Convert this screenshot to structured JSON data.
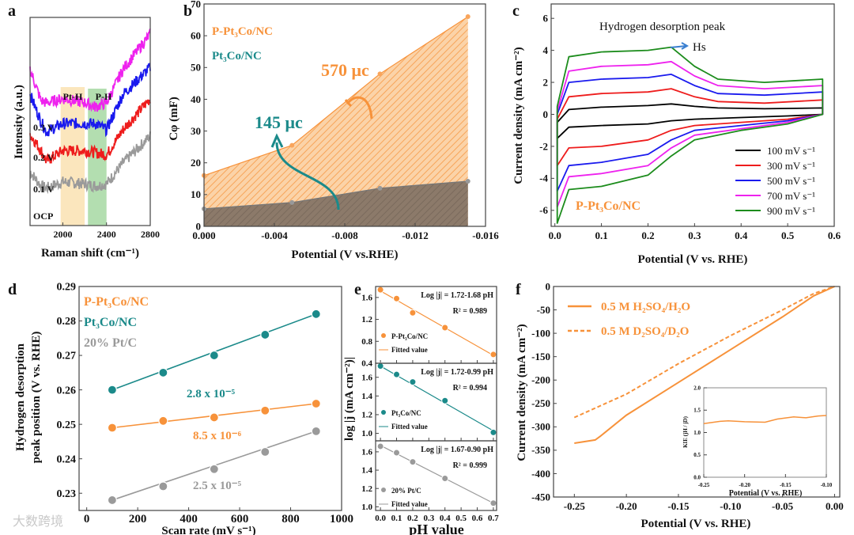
{
  "colors": {
    "orange": "#f7923a",
    "teal": "#1b8a8a",
    "grey": "#9a9a9a",
    "black": "#000000",
    "red": "#ee1c1c",
    "blue": "#1a1aee",
    "magenta": "#ee22ee",
    "green": "#1c8c1c",
    "pth_band": "#fbe6bd",
    "ph_band": "#a6d8a2"
  },
  "chart_data": [
    {
      "id": "a",
      "type": "line",
      "panel_label": "a",
      "xlabel": "Raman shift (cm⁻¹)",
      "ylabel": "Intensity (a.u.)",
      "xlim": [
        1700,
        2800
      ],
      "ylim": [
        0,
        10
      ],
      "xticks": [
        2000,
        2400,
        2800
      ],
      "xtick_labels": [
        "2000",
        "2400",
        "2800"
      ],
      "bands": [
        {
          "label": "Pt-H",
          "range": [
            1980,
            2200
          ]
        },
        {
          "label": "P-H",
          "range": [
            2230,
            2400
          ]
        }
      ],
      "x": [
        1700,
        1800,
        1850,
        2000,
        2200,
        2300,
        2400,
        2550,
        2800
      ],
      "series": [
        {
          "name": "OCP",
          "color": "grey",
          "values": [
            2.6,
            1.9,
            1.8,
            2.1,
            2.0,
            1.9,
            2.0,
            3.0,
            4.3
          ]
        },
        {
          "name": "0.1 V",
          "color": "red",
          "values": [
            4.4,
            3.6,
            3.1,
            3.6,
            3.6,
            3.5,
            3.4,
            4.6,
            6.1
          ]
        },
        {
          "name": "0.2 V",
          "color": "blue",
          "values": [
            6.3,
            5.0,
            4.5,
            4.9,
            4.9,
            4.9,
            4.6,
            6.3,
            7.6
          ]
        },
        {
          "name": "0.3 V",
          "color": "magenta",
          "values": [
            7.5,
            6.0,
            5.9,
            6.1,
            5.9,
            5.7,
            5.9,
            7.5,
            9.2
          ]
        }
      ]
    },
    {
      "id": "b",
      "type": "area",
      "panel_label": "b",
      "xlabel": "Potential (V vs.RHE)",
      "ylabel": "Cφ (mF)",
      "xlim": [
        0,
        -0.016
      ],
      "ylim": [
        0,
        70
      ],
      "xticks": [
        0,
        -0.004,
        -0.008,
        -0.012,
        -0.016
      ],
      "xtick_labels": [
        "0.000",
        "-0.004",
        "-0.008",
        "-0.012",
        "-0.016"
      ],
      "yticks": [
        0,
        10,
        20,
        30,
        40,
        50,
        60,
        70
      ],
      "ytick_labels": [
        "0",
        "10",
        "20",
        "30",
        "40",
        "50",
        "60",
        "70"
      ],
      "x": [
        0,
        -0.005,
        -0.01,
        -0.015
      ],
      "series": [
        {
          "name": "P-Pt₃Co/NC",
          "color": "orange",
          "values": [
            16,
            25.5,
            48,
            66
          ]
        },
        {
          "name": "Pt₃Co/NC",
          "color": "grey",
          "values": [
            5.5,
            7.5,
            12,
            14.2
          ]
        }
      ],
      "annotations": [
        "570 μc",
        "145 μc"
      ]
    },
    {
      "id": "c",
      "type": "line",
      "panel_label": "c",
      "xlabel": "Potential (V vs. RHE)",
      "ylabel": "Current density (mA cm⁻²)",
      "xlim": [
        -0.008,
        0.6
      ],
      "ylim": [
        -7,
        6.9
      ],
      "xticks": [
        0,
        0.1,
        0.2,
        0.3,
        0.4,
        0.5,
        0.6
      ],
      "xtick_labels": [
        "0.0",
        "0.1",
        "0.2",
        "0.3",
        "0.4",
        "0.5",
        "0.6"
      ],
      "yticks": [
        -6,
        -4,
        -2,
        0,
        2,
        4,
        6
      ],
      "ytick_labels": [
        "-6",
        "-4",
        "-2",
        "0",
        "2",
        "4",
        "6"
      ],
      "title": "Hydrogen desorption peak",
      "peak_label": "Hs",
      "sample_label": "P-Pt₃Co/NC",
      "x_anodic": [
        0.005,
        0.03,
        0.1,
        0.2,
        0.25,
        0.3,
        0.35,
        0.45,
        0.575
      ],
      "x_cathodic": [
        0.575,
        0.5,
        0.4,
        0.3,
        0.25,
        0.2,
        0.1,
        0.03,
        0.005
      ],
      "series": [
        {
          "name": "100 mV s⁻¹",
          "color": "black",
          "anodic": [
            -0.5,
            0.3,
            0.45,
            0.55,
            0.65,
            0.5,
            0.4,
            0.35,
            0.4
          ],
          "cathodic": [
            0,
            -0.1,
            -0.2,
            -0.3,
            -0.4,
            -0.6,
            -0.7,
            -0.8,
            -1.5
          ]
        },
        {
          "name": "300 mV s⁻¹",
          "color": "red",
          "anodic": [
            -0.3,
            1.1,
            1.3,
            1.4,
            1.6,
            1.1,
            0.8,
            0.7,
            0.9
          ],
          "cathodic": [
            0,
            -0.3,
            -0.5,
            -0.7,
            -1.0,
            -1.6,
            -2.0,
            -2.1,
            -3.2
          ]
        },
        {
          "name": "500 mV s⁻¹",
          "color": "blue",
          "anodic": [
            0,
            2.0,
            2.2,
            2.3,
            2.5,
            1.8,
            1.3,
            1.2,
            1.4
          ],
          "cathodic": [
            0,
            -0.4,
            -0.7,
            -1.0,
            -1.6,
            -2.5,
            -3.0,
            -3.2,
            -4.8
          ]
        },
        {
          "name": "700 mV s⁻¹",
          "color": "magenta",
          "anodic": [
            0.2,
            2.7,
            3.0,
            3.1,
            3.3,
            2.4,
            1.8,
            1.6,
            1.8
          ],
          "cathodic": [
            0,
            -0.5,
            -0.9,
            -1.3,
            -2.1,
            -3.2,
            -3.7,
            -3.9,
            -5.8
          ]
        },
        {
          "name": "900 mV s⁻¹",
          "color": "green",
          "anodic": [
            0.5,
            3.6,
            3.9,
            4.0,
            4.2,
            3.0,
            2.2,
            2.0,
            2.2
          ],
          "cathodic": [
            0,
            -0.6,
            -1.0,
            -1.6,
            -2.6,
            -3.8,
            -4.5,
            -4.7,
            -6.8
          ]
        }
      ]
    },
    {
      "id": "d",
      "type": "scatter",
      "panel_label": "d",
      "xlabel": "Scan rate (mV s⁻¹)",
      "ylabel": "Hydrogen desorption peak position (V vs. RHE)",
      "ylabel_line1": "Hydrogen desorption",
      "ylabel_line2": "peak position (V vs. RHE)",
      "xlim": [
        -30,
        1000
      ],
      "ylim": [
        0.225,
        0.29
      ],
      "xticks": [
        0,
        200,
        400,
        600,
        800,
        1000
      ],
      "xtick_labels": [
        "0",
        "200",
        "400",
        "600",
        "800",
        "1000"
      ],
      "yticks": [
        0.23,
        0.24,
        0.25,
        0.26,
        0.27,
        0.28,
        0.29
      ],
      "ytick_labels": [
        "0.23",
        "0.24",
        "0.25",
        "0.26",
        "0.27",
        "0.28",
        "0.29"
      ],
      "x": [
        100,
        300,
        500,
        700,
        900
      ],
      "series": [
        {
          "name": "P-Pt₃Co/NC",
          "color": "orange",
          "values": [
            0.249,
            0.251,
            0.252,
            0.254,
            0.256
          ],
          "slope": "8.5 x 10⁻⁶"
        },
        {
          "name": "Pt₃Co/NC",
          "color": "teal",
          "values": [
            0.26,
            0.265,
            0.27,
            0.276,
            0.282
          ],
          "slope": "2.8 x 10⁻⁵"
        },
        {
          "name": "20% Pt/C",
          "color": "grey",
          "values": [
            0.228,
            0.232,
            0.237,
            0.242,
            0.248
          ],
          "slope": "2.5 x 10⁻⁵"
        }
      ]
    },
    {
      "id": "e",
      "type": "scatter",
      "panel_label": "e",
      "xlabel": "pH value",
      "ylabel": "log |j (mA cm⁻²)|",
      "xlim": [
        -0.03,
        0.72
      ],
      "xticks": [
        0,
        0.1,
        0.2,
        0.3,
        0.4,
        0.5,
        0.6,
        0.7
      ],
      "xtick_labels": [
        "0.0",
        "0.1",
        "0.2",
        "0.3",
        "0.4",
        "0.5",
        "0.6",
        "0.7"
      ],
      "x": [
        0,
        0.1,
        0.2,
        0.4,
        0.7
      ],
      "subplots": [
        {
          "name": "P-Pt₃Co/NC",
          "color": "orange",
          "ylim": [
            0.4,
            1.8
          ],
          "yticks": [
            0.4,
            0.8,
            1.2,
            1.6
          ],
          "ytick_labels": [
            "0.4",
            "0.8",
            "1.2",
            "1.6"
          ],
          "values": [
            1.74,
            1.58,
            1.32,
            1.05,
            0.56
          ],
          "fit": [
            1.72,
            -1.68
          ],
          "equation": "Log |j| = 1.72-1.68 pH",
          "r2": "R² = 0.989",
          "fit_label": "Fitted value"
        },
        {
          "name": "Pt₃Co/NC",
          "color": "teal",
          "ylim": [
            0.92,
            1.75
          ],
          "yticks": [
            1.0,
            1.2,
            1.4,
            1.6
          ],
          "ytick_labels": [
            "1.0",
            "1.2",
            "1.4",
            "1.6"
          ],
          "values": [
            1.72,
            1.63,
            1.55,
            1.35,
            1.01
          ],
          "fit": [
            1.72,
            -0.99
          ],
          "equation": "Log |j| = 1.72-0.99 pH",
          "r2": "R² = 0.994",
          "fit_label": "Fitted value"
        },
        {
          "name": "20% Pt/C",
          "color": "grey",
          "ylim": [
            0.96,
            1.72
          ],
          "yticks": [
            1.0,
            1.2,
            1.4,
            1.6
          ],
          "ytick_labels": [
            "1.0",
            "1.2",
            "1.4",
            "1.6"
          ],
          "values": [
            1.66,
            1.59,
            1.49,
            1.31,
            1.04
          ],
          "fit": [
            1.67,
            -0.9
          ],
          "equation": "Log |j| = 1.67-0.90 pH",
          "r2": "R² = 0.999",
          "fit_label": "Fitted value"
        }
      ]
    },
    {
      "id": "f",
      "type": "line",
      "panel_label": "f",
      "xlabel": "Potential (V vs. RHE)",
      "ylabel": "Current density (mA cm⁻²)",
      "xlim": [
        -0.27,
        0.005
      ],
      "ylim": [
        -450,
        0
      ],
      "xticks": [
        -0.25,
        -0.2,
        -0.15,
        -0.1,
        -0.05,
        0
      ],
      "xtick_labels": [
        "-0.25",
        "-0.20",
        "-0.15",
        "-0.10",
        "-0.05",
        "0.00"
      ],
      "yticks": [
        -450,
        -400,
        -350,
        -300,
        -250,
        -200,
        -150,
        -100,
        -50,
        0
      ],
      "ytick_labels": [
        "-450",
        "-400",
        "-350",
        "-300",
        "-250",
        "-200",
        "-150",
        "-100",
        "-50",
        "0"
      ],
      "series": [
        {
          "name": "0.5 M H₂SO₄/H₂O",
          "color": "orange",
          "style": "solid",
          "x": [
            -0.25,
            -0.23,
            -0.225,
            -0.2,
            -0.15,
            -0.1,
            -0.05,
            -0.02,
            0
          ],
          "values": [
            -335,
            -328,
            -320,
            -275,
            -205,
            -135,
            -65,
            -20,
            0
          ]
        },
        {
          "name": "0.5 M D₂SO₄/D₂O",
          "color": "orange",
          "style": "dashed",
          "x": [
            -0.25,
            -0.2,
            -0.15,
            -0.1,
            -0.05,
            -0.02,
            0
          ],
          "values": [
            -280,
            -230,
            -165,
            -105,
            -50,
            -15,
            0
          ]
        }
      ],
      "inset": {
        "type": "line",
        "xlabel": "Potential (V vs. RHE)",
        "ylabel": "KIE (jH / jD)",
        "xlim": [
          -0.25,
          -0.1
        ],
        "ylim": [
          0,
          2
        ],
        "xticks": [
          -0.25,
          -0.2,
          -0.15,
          -0.1
        ],
        "xtick_labels": [
          "-0.25",
          "-0.20",
          "-0.15",
          "-0.10"
        ],
        "yticks": [
          0,
          0.5,
          1,
          1.5,
          2
        ],
        "ytick_labels": [
          "0.0",
          "0.5",
          "1.0",
          "1.5",
          "2.0"
        ],
        "x": [
          -0.25,
          -0.23,
          -0.22,
          -0.2,
          -0.175,
          -0.16,
          -0.14,
          -0.125,
          -0.11,
          -0.1
        ],
        "values": [
          1.2,
          1.25,
          1.26,
          1.24,
          1.23,
          1.3,
          1.35,
          1.33,
          1.37,
          1.38
        ]
      }
    }
  ],
  "watermark": "大数跨境"
}
